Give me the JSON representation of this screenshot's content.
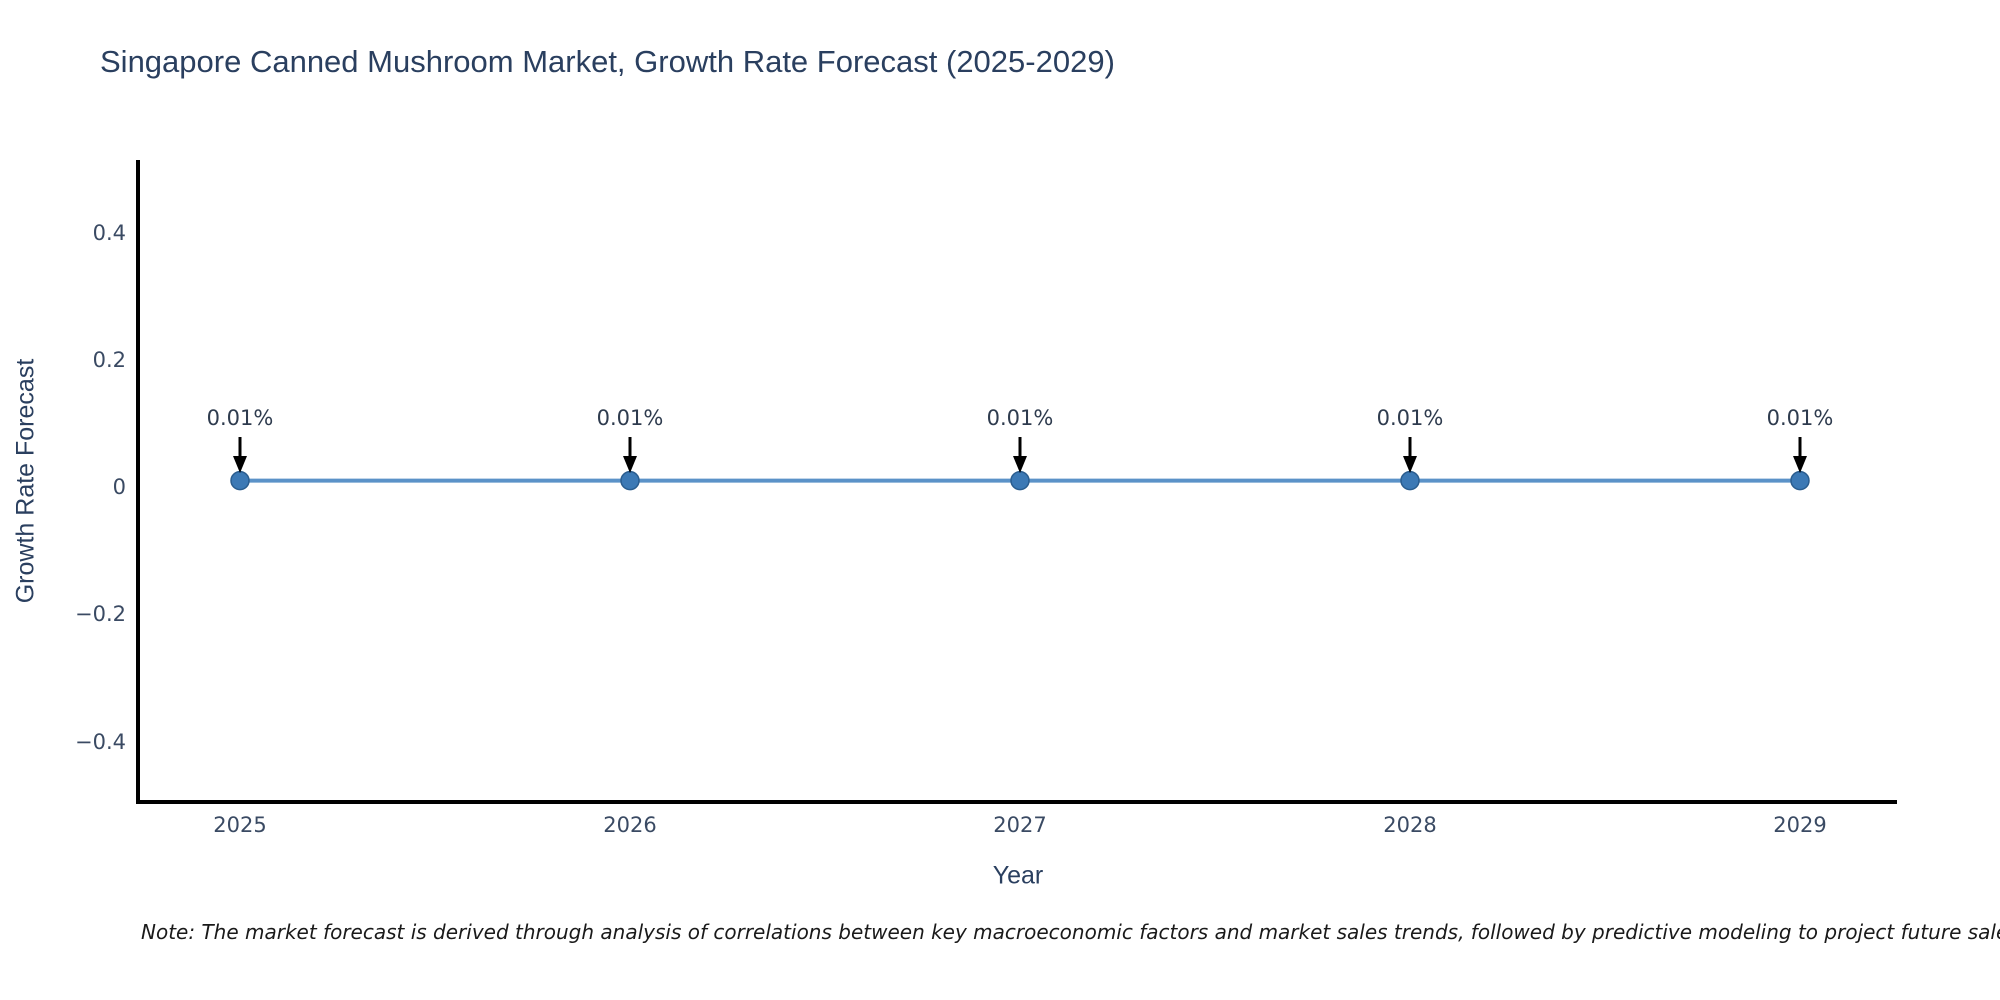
{
  "page": {
    "background": "#ffffff"
  },
  "chart_data": {
    "type": "line",
    "title": "Singapore Canned Mushroom Market, Growth Rate Forecast (2025-2029)",
    "xlabel": "Year",
    "ylabel": "Growth Rate Forecast",
    "x": [
      2025,
      2026,
      2027,
      2028,
      2029
    ],
    "series": [
      {
        "name": "Growth Rate Forecast",
        "values": [
          0.01,
          0.01,
          0.01,
          0.01,
          0.01
        ]
      }
    ],
    "point_labels": [
      "0.01%",
      "0.01%",
      "0.01%",
      "0.01%",
      "0.01%"
    ],
    "xticks": [
      "2025",
      "2026",
      "2027",
      "2028",
      "2029"
    ],
    "yticks": {
      "values": [
        0.4,
        0.2,
        0,
        -0.2,
        -0.4
      ],
      "labels": [
        "0.4",
        "0.2",
        "0",
        "−0.2",
        "−0.4"
      ]
    },
    "ylim": [
      -0.495,
      0.515
    ],
    "grid": false,
    "legend": "none",
    "annotation_style": "down-arrow",
    "colors": {
      "line": "#5b92c8",
      "marker": "#3c79b5",
      "marker_edge": "#2a5d8f",
      "axis": "#000000",
      "arrow": "#000000",
      "title_text": "#2a3f5f",
      "tick_text": "#3a4a63",
      "annotation_text": "#2e3b4e"
    }
  },
  "note": {
    "text": "Note: The market forecast is derived through analysis of correlations between key macroeconomic factors and market sales trends, followed by predictive modeling to project future sales."
  }
}
